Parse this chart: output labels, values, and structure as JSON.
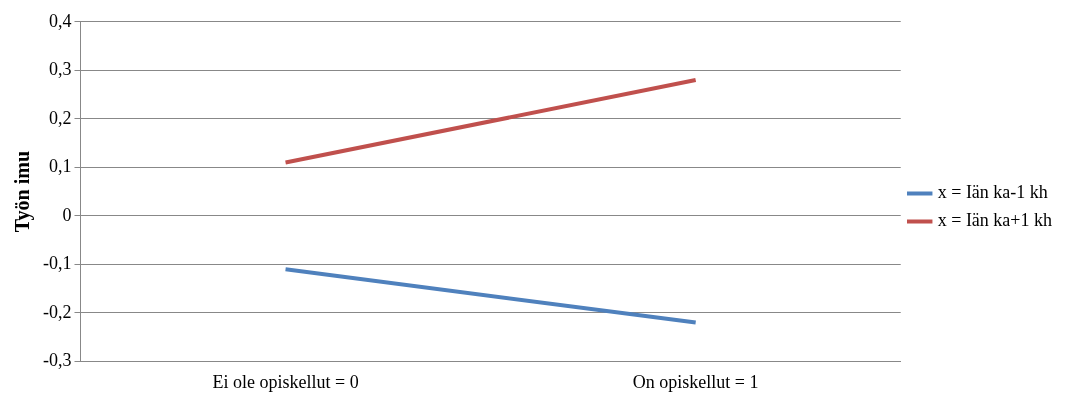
{
  "chart_data": {
    "type": "line",
    "ylabel": "Työn imu",
    "categories": [
      "Ei ole opiskellut = 0",
      "On opiskellut = 1"
    ],
    "series": [
      {
        "name": "x = Iän ka-1 kh",
        "color": "#4f81bd",
        "values": [
          -0.11,
          -0.22
        ]
      },
      {
        "name": "x = Iän ka+1 kh",
        "color": "#c0504d",
        "values": [
          0.11,
          0.28
        ]
      }
    ],
    "ylim": [
      -0.3,
      0.4
    ],
    "yticks": [
      {
        "value": -0.3,
        "label": "-0,3"
      },
      {
        "value": -0.2,
        "label": "-0,2"
      },
      {
        "value": -0.1,
        "label": "-0,1"
      },
      0,
      {
        "value": 0.1,
        "label": "0,1"
      },
      {
        "value": 0.2,
        "label": "0,2"
      },
      {
        "value": 0.3,
        "label": "0,3"
      },
      {
        "value": 0.4,
        "label": "0,4"
      }
    ],
    "grid": "y",
    "legend": "right",
    "marker": "none",
    "line_style": "solid"
  }
}
